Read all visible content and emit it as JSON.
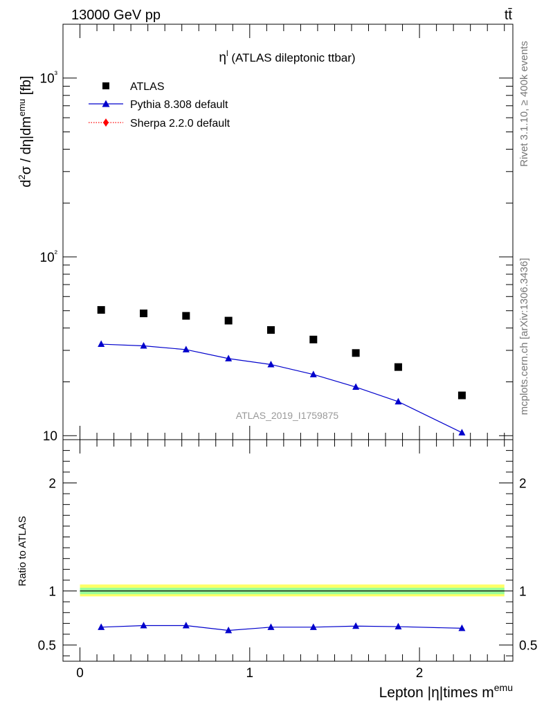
{
  "header": {
    "left": "13000 GeV pp",
    "right": "tt̄"
  },
  "side_text": {
    "top": "Rivet 3.1.10, ≥ 400k events",
    "bottom": "mcplots.cern.ch [arXiv:1306.3436]"
  },
  "watermark": "ATLAS_2019_I1759875",
  "chart_data": [
    {
      "type": "scatter",
      "title": "η^l (ATLAS dileptonic ttbar)",
      "title_main": "η",
      "title_sup": "l",
      "title_rest": " (ATLAS dileptonic ttbar)",
      "ylabel": "d²σ / d|η|dm^emu [fb]",
      "y_scale": "log",
      "ylim": [
        9.5,
        2000
      ],
      "xlim": [
        -0.1,
        2.55
      ],
      "y_tick_labels": {
        "10": "10",
        "100": "10²",
        "1000": "10³"
      },
      "legend": {
        "placement": "top-left",
        "entries": [
          "ATLAS",
          "Pythia 8.308 default",
          "Sherpa 2.2.0 default"
        ]
      },
      "x": [
        0.125,
        0.375,
        0.625,
        0.875,
        1.125,
        1.375,
        1.625,
        1.875,
        2.25
      ],
      "series": [
        {
          "name": "ATLAS",
          "marker": "square",
          "color": "#000000",
          "values": [
            50.5,
            48.3,
            46.8,
            44.0,
            39.0,
            34.5,
            29.0,
            24.2,
            16.8
          ]
        },
        {
          "name": "Pythia 8.308 default",
          "marker": "triangle",
          "line": "solid",
          "color": "#0000cc",
          "values": [
            32.5,
            31.8,
            30.3,
            27.0,
            25.0,
            22.0,
            18.7,
            15.5,
            10.4
          ]
        },
        {
          "name": "Sherpa 2.2.0 default",
          "marker": "diamond",
          "line": "dotted",
          "color": "#ff0000",
          "values": []
        }
      ]
    },
    {
      "type": "line",
      "ylabel": "Ratio to ATLAS",
      "xlabel": "Lepton |η|times m^emu",
      "xlabel_main": "Lepton |η|times m",
      "xlabel_sup": "emu",
      "xlim": [
        -0.1,
        2.55
      ],
      "ylim": [
        0.35,
        2.4
      ],
      "x_ticks": [
        0,
        1,
        2
      ],
      "y_ticks": [
        0.5,
        1,
        2
      ],
      "y_tick_labels": [
        "0.5",
        "1",
        "2"
      ],
      "band_colors": {
        "outer": "#ffff66",
        "inner": "#99ff99",
        "reference_line": "#000000"
      },
      "bands": {
        "outer": [
          0.95,
          1.06
        ],
        "inner": [
          0.97,
          1.03
        ]
      },
      "x": [
        0.125,
        0.375,
        0.625,
        0.875,
        1.125,
        1.375,
        1.625,
        1.875,
        2.25
      ],
      "series": [
        {
          "name": "Pythia 8.308 default",
          "color": "#0000cc",
          "values": [
            0.665,
            0.68,
            0.68,
            0.635,
            0.665,
            0.665,
            0.675,
            0.67,
            0.655
          ]
        }
      ]
    }
  ]
}
